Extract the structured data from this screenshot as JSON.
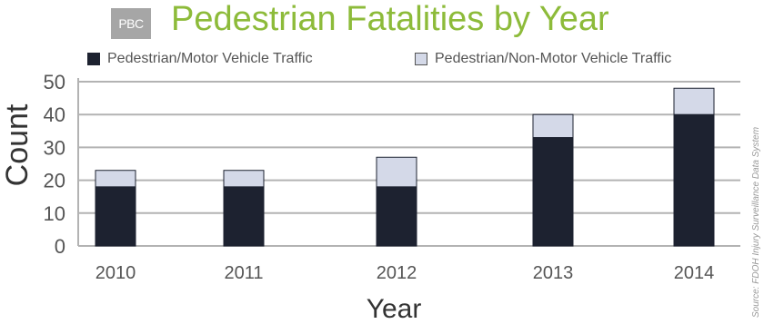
{
  "badge": "PBC",
  "chart_data": {
    "type": "bar",
    "stacked": true,
    "title": "Pedestrian Fatalities by Year",
    "xlabel": "Year",
    "ylabel": "Count",
    "categories": [
      "2010",
      "2011",
      "2012",
      "2013",
      "2014"
    ],
    "series": [
      {
        "name": "Pedestrian/Motor Vehicle Traffic",
        "values": [
          18,
          18,
          18,
          33,
          40
        ],
        "color": "#1d2230"
      },
      {
        "name": "Pedestrian/Non-Motor Vehicle Traffic",
        "values": [
          5,
          5,
          9,
          7,
          8
        ],
        "color": "#d4d9e8"
      }
    ],
    "ylim": [
      0,
      50
    ],
    "yticks": [
      "0",
      "10",
      "20",
      "30",
      "40",
      "50"
    ],
    "grid": true,
    "legend": "top",
    "source": "Source: FDOH Injury Surveillance Data System"
  }
}
